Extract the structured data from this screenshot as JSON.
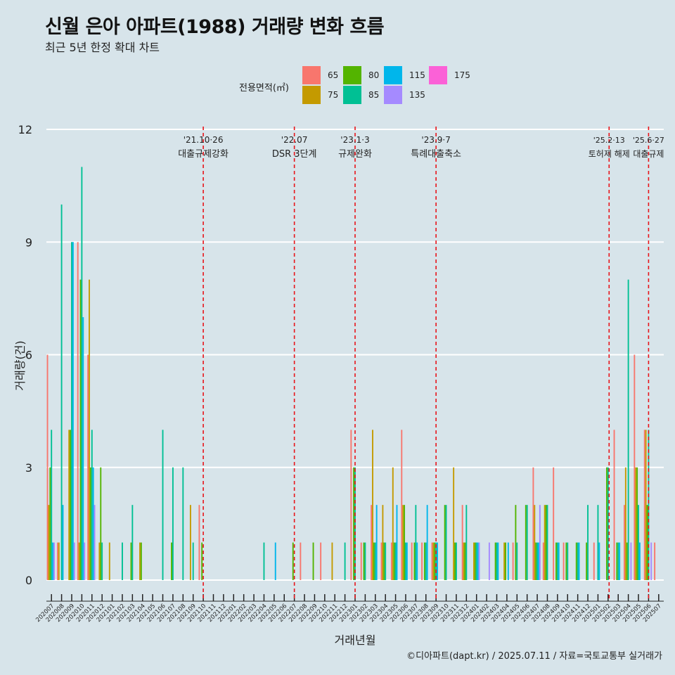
{
  "title": "신월 은아 아파트(1988) 거래량 변화 흐름",
  "subtitle": "최근 5년 한정 확대 차트",
  "caption": "©디아파트(dapt.kr) / 2025.07.11 / 자료=국토교통부 실거래가",
  "legend": {
    "title": "전용면적(㎡)",
    "items": [
      {
        "label": "65",
        "color": "#F8766D"
      },
      {
        "label": "75",
        "color": "#C49A00"
      },
      {
        "label": "80",
        "color": "#53B400"
      },
      {
        "label": "85",
        "color": "#00C094"
      },
      {
        "label": "115",
        "color": "#00B6EB"
      },
      {
        "label": "135",
        "color": "#A58AFF"
      },
      {
        "label": "175",
        "color": "#FB61D7"
      }
    ]
  },
  "chart_data": {
    "type": "bar",
    "title": "신월 은아 아파트(1988) 거래량 변화 흐름",
    "xlabel": "거래년월",
    "ylabel": "거래량(건)",
    "ylim": [
      0,
      12
    ],
    "yticks": [
      "0",
      "3",
      "6",
      "9",
      "12"
    ],
    "categories": [
      "202007",
      "202008",
      "202009",
      "202010",
      "202011",
      "202012",
      "202101",
      "202102",
      "202103",
      "202104",
      "202105",
      "202106",
      "202107",
      "202108",
      "202109",
      "202110",
      "202111",
      "202112",
      "202201",
      "202202",
      "202203",
      "202204",
      "202205",
      "202206",
      "202207",
      "202208",
      "202209",
      "202210",
      "202211",
      "202212",
      "202301",
      "202302",
      "202303",
      "202304",
      "202305",
      "202306",
      "202307",
      "202308",
      "202309",
      "202310",
      "202311",
      "202312",
      "202401",
      "202402",
      "202403",
      "202404",
      "202405",
      "202406",
      "202407",
      "202408",
      "202409",
      "202410",
      "202411",
      "202412",
      "202501",
      "202502",
      "202503",
      "202504",
      "202505",
      "202506",
      "202507"
    ],
    "series": [
      {
        "name": "65",
        "color": "#F8766D",
        "values": [
          6,
          1,
          0,
          9,
          6,
          0,
          0,
          0,
          0,
          0,
          0,
          0,
          0,
          0,
          0,
          2,
          0,
          0,
          0,
          0,
          0,
          0,
          0,
          0,
          0,
          1,
          0,
          1,
          0,
          0,
          4,
          1,
          2,
          1,
          1,
          4,
          1,
          1,
          1,
          0,
          0,
          2,
          0,
          0,
          0,
          0,
          1,
          0,
          3,
          1,
          3,
          1,
          0,
          0,
          1,
          0,
          4,
          2,
          6,
          4,
          1
        ]
      },
      {
        "name": "75",
        "color": "#C49A00",
        "values": [
          2,
          1,
          4,
          1,
          8,
          1,
          1,
          0,
          0,
          1,
          0,
          0,
          0,
          0,
          2,
          0,
          0,
          0,
          0,
          0,
          0,
          0,
          0,
          0,
          0,
          0,
          0,
          0,
          1,
          0,
          0,
          0,
          4,
          2,
          3,
          2,
          0,
          0,
          1,
          0,
          3,
          1,
          1,
          0,
          0,
          1,
          0,
          0,
          2,
          2,
          0,
          0,
          0,
          0,
          0,
          0,
          0,
          3,
          3,
          4,
          0
        ]
      },
      {
        "name": "80",
        "color": "#53B400",
        "values": [
          3,
          0,
          4,
          8,
          3,
          3,
          0,
          0,
          1,
          1,
          0,
          0,
          1,
          0,
          0,
          1,
          0,
          0,
          0,
          0,
          0,
          0,
          0,
          0,
          1,
          0,
          1,
          0,
          0,
          0,
          3,
          1,
          1,
          1,
          1,
          2,
          1,
          1,
          1,
          2,
          1,
          1,
          1,
          0,
          1,
          1,
          2,
          2,
          1,
          2,
          1,
          1,
          1,
          1,
          0,
          3,
          1,
          1,
          3,
          2,
          0
        ]
      },
      {
        "name": "85",
        "color": "#00C094",
        "values": [
          4,
          10,
          9,
          11,
          4,
          1,
          0,
          1,
          2,
          0,
          0,
          4,
          3,
          3,
          1,
          0,
          0,
          0,
          0,
          0,
          0,
          1,
          0,
          0,
          0,
          0,
          0,
          0,
          0,
          1,
          3,
          1,
          1,
          1,
          1,
          1,
          2,
          1,
          1,
          2,
          1,
          2,
          1,
          0,
          1,
          0,
          1,
          2,
          1,
          2,
          1,
          1,
          1,
          2,
          2,
          3,
          1,
          8,
          2,
          4,
          0
        ]
      },
      {
        "name": "115",
        "color": "#00B6EB",
        "values": [
          1,
          2,
          9,
          7,
          3,
          0,
          0,
          0,
          0,
          0,
          0,
          0,
          0,
          0,
          0,
          0,
          0,
          0,
          0,
          0,
          0,
          0,
          1,
          0,
          0,
          0,
          0,
          0,
          0,
          0,
          0,
          0,
          2,
          0,
          2,
          1,
          1,
          2,
          1,
          0,
          0,
          0,
          1,
          0,
          1,
          1,
          0,
          0,
          1,
          0,
          1,
          0,
          1,
          0,
          1,
          0,
          1,
          0,
          1,
          0,
          0
        ]
      },
      {
        "name": "135",
        "color": "#A58AFF",
        "values": [
          1,
          0,
          1,
          1,
          2,
          0,
          0,
          0,
          0,
          0,
          0,
          0,
          0,
          0,
          0,
          0,
          0,
          0,
          0,
          0,
          0,
          0,
          0,
          0,
          0,
          0,
          0,
          0,
          0,
          0,
          0,
          0,
          0,
          0,
          0,
          0,
          0,
          0,
          0,
          0,
          0,
          0,
          1,
          1,
          0,
          0,
          0,
          0,
          2,
          0,
          0,
          0,
          0,
          0,
          0,
          0,
          0,
          1,
          0,
          1,
          0
        ]
      },
      {
        "name": "175",
        "color": "#FB61D7",
        "values": [
          0,
          0,
          0,
          0,
          0,
          0,
          0,
          0,
          0,
          0,
          0,
          0,
          0,
          0,
          0,
          0,
          0,
          0,
          0,
          0,
          0,
          0,
          0,
          0,
          0,
          0,
          0,
          0,
          0,
          0,
          0,
          0,
          0,
          0,
          0,
          0,
          0,
          0,
          0,
          0,
          0,
          0,
          0,
          0,
          0,
          0,
          0,
          0,
          0,
          0,
          0,
          0,
          0,
          0,
          0,
          0,
          0,
          0,
          0,
          0,
          0
        ]
      }
    ],
    "events": [
      {
        "index": 15.5,
        "date": "'21.10·26",
        "label": "대출규제강화"
      },
      {
        "index": 24.5,
        "date": "'22.07",
        "label": "DSR 3단계"
      },
      {
        "index": 30.5,
        "date": "'23.1·3",
        "label": "규제완화"
      },
      {
        "index": 38.5,
        "date": "'23.9·7",
        "label": "특례대출축소"
      },
      {
        "index": 55.6,
        "date": "'25.2·13",
        "label": "토허제 해제"
      },
      {
        "index": 59.5,
        "date": "'25.6·27",
        "label": "대출규제"
      }
    ]
  }
}
